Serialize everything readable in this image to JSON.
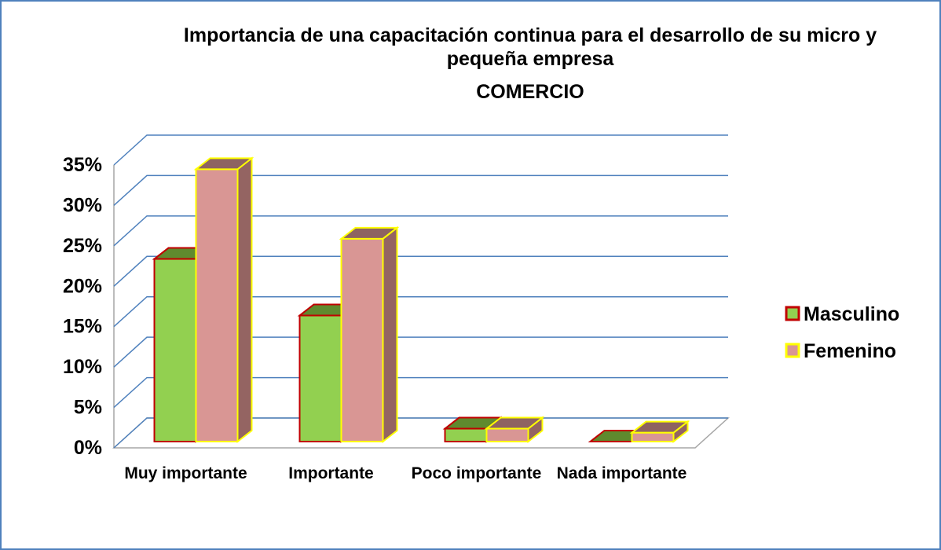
{
  "chart_data": {
    "type": "bar3d",
    "title": "Importancia de una capacitación continua para el desarrollo de su micro y pequeña empresa",
    "subtitle": "COMERCIO",
    "categories": [
      "Muy importante",
      "Importante",
      "Poco importante",
      "Nada importante"
    ],
    "series": [
      {
        "name": "Masculino",
        "color": "#92d050",
        "edge": "#c00000",
        "top": "#5f8a2e",
        "side": "#4f7526",
        "values": [
          22.6,
          15.6,
          1.6,
          0
        ]
      },
      {
        "name": "Femenino",
        "color": "#d99694",
        "edge": "#ffff00",
        "top": "#8e6361",
        "side": "#946462",
        "values": [
          33.7,
          25.1,
          1.6,
          1.1
        ]
      }
    ],
    "ylim": [
      0,
      35
    ],
    "yticks": [
      {
        "value": 0,
        "label": "0%"
      },
      {
        "value": 5,
        "label": "5%"
      },
      {
        "value": 10,
        "label": "10%"
      },
      {
        "value": 15,
        "label": "15%"
      },
      {
        "value": 20,
        "label": "20%"
      },
      {
        "value": 25,
        "label": "25%"
      },
      {
        "value": 30,
        "label": "30%"
      },
      {
        "value": 35,
        "label": "35%"
      }
    ],
    "grid": true,
    "legend": "right"
  }
}
